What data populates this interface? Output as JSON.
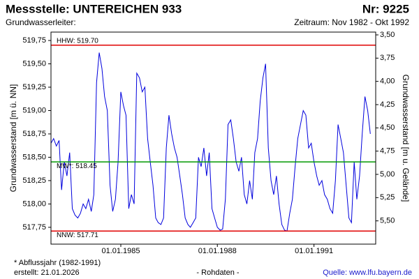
{
  "chart_data": {
    "type": "line",
    "title": "Messstelle: UNTEREICHEN 933",
    "number": "Nr: 9225",
    "subtitle": "Grundwasserleiter:",
    "period": "Zeitraum: Nov 1982 - Okt 1992",
    "ylabel": "Grundwasserstand [m ü. NN]",
    "y2label": "Grundwasserstand [m u. Gelände]",
    "footnote": "* Abflussjahr (1982-1991)",
    "created": "erstellt:  21.01.2026",
    "data_kind": "- Rohdaten -",
    "source": "Quelle: www.lfu.bayern.de",
    "color": "#0000dd",
    "xlim": [
      "1982-11-01",
      "1992-12-01"
    ],
    "xticks": [
      {
        "value": "1985-01-01",
        "label": "01.01.1985"
      },
      {
        "value": "1988-01-01",
        "label": "01.01.1988"
      },
      {
        "value": "1991-01-01",
        "label": "01.01.1991"
      }
    ],
    "ylim": [
      517.57,
      519.84
    ],
    "yticks": [
      {
        "value": 517.75,
        "label": "517,75"
      },
      {
        "value": 518.0,
        "label": "518,00"
      },
      {
        "value": 518.25,
        "label": "518,25"
      },
      {
        "value": 518.5,
        "label": "518,50"
      },
      {
        "value": 518.75,
        "label": "518,75"
      },
      {
        "value": 519.0,
        "label": "519,00"
      },
      {
        "value": 519.25,
        "label": "519,25"
      },
      {
        "value": 519.5,
        "label": "519,50"
      },
      {
        "value": 519.75,
        "label": "519,75"
      }
    ],
    "y2lim": [
      5.75,
      3.47
    ],
    "y2ticks": [
      {
        "value": 3.5,
        "label": "3,50"
      },
      {
        "value": 3.75,
        "label": "3,75"
      },
      {
        "value": 4.0,
        "label": "4,00"
      },
      {
        "value": 4.25,
        "label": "4,25"
      },
      {
        "value": 4.5,
        "label": "4,50"
      },
      {
        "value": 4.75,
        "label": "4,75"
      },
      {
        "value": 5.0,
        "label": "5,00"
      },
      {
        "value": 5.25,
        "label": "5,25"
      },
      {
        "value": 5.5,
        "label": "5,50"
      }
    ],
    "reference_lines": [
      {
        "label": "HHW: 519.70",
        "value": 519.7,
        "color": "#e00000"
      },
      {
        "label": "MW*: 518.45",
        "value": 518.45,
        "color": "#009900"
      },
      {
        "label": "NNW: 517.71",
        "value": 517.71,
        "color": "#e00000"
      }
    ],
    "x": [
      "1982-11-01",
      "1982-12-01",
      "1983-01-01",
      "1983-02-01",
      "1983-03-01",
      "1983-04-01",
      "1983-05-01",
      "1983-06-01",
      "1983-07-01",
      "1983-08-01",
      "1983-09-01",
      "1983-10-01",
      "1983-11-01",
      "1983-12-01",
      "1984-01-01",
      "1984-02-01",
      "1984-03-01",
      "1984-04-01",
      "1984-05-01",
      "1984-06-01",
      "1984-07-01",
      "1984-08-01",
      "1984-09-01",
      "1984-10-01",
      "1984-11-01",
      "1984-12-01",
      "1985-01-01",
      "1985-02-01",
      "1985-03-01",
      "1985-04-01",
      "1985-05-01",
      "1985-06-01",
      "1985-07-01",
      "1985-08-01",
      "1985-09-01",
      "1985-10-01",
      "1985-11-01",
      "1985-12-01",
      "1986-01-01",
      "1986-02-01",
      "1986-03-01",
      "1986-04-01",
      "1986-05-01",
      "1986-06-01",
      "1986-07-01",
      "1986-08-01",
      "1986-09-01",
      "1986-10-01",
      "1986-11-01",
      "1986-12-01",
      "1987-01-01",
      "1987-02-01",
      "1987-03-01",
      "1987-04-01",
      "1987-05-01",
      "1987-06-01",
      "1987-07-01",
      "1987-08-01",
      "1987-09-01",
      "1987-10-01",
      "1987-11-01",
      "1987-12-01",
      "1988-01-01",
      "1988-02-01",
      "1988-03-01",
      "1988-04-01",
      "1988-05-01",
      "1988-06-01",
      "1988-07-01",
      "1988-08-01",
      "1988-09-01",
      "1988-10-01",
      "1988-11-01",
      "1988-12-01",
      "1989-01-01",
      "1989-02-01",
      "1989-03-01",
      "1989-04-01",
      "1989-05-01",
      "1989-06-01",
      "1989-07-01",
      "1989-08-01",
      "1989-09-01",
      "1989-10-01",
      "1989-11-01",
      "1989-12-01",
      "1990-01-01",
      "1990-02-01",
      "1990-03-01",
      "1990-04-01",
      "1990-05-01",
      "1990-06-01",
      "1990-07-01",
      "1990-08-01",
      "1990-09-01",
      "1990-10-01",
      "1990-11-01",
      "1990-12-01",
      "1991-01-01",
      "1991-02-01",
      "1991-03-01",
      "1991-04-01",
      "1991-05-01",
      "1991-06-01",
      "1991-07-01",
      "1991-08-01",
      "1991-09-01",
      "1991-10-01",
      "1991-11-01",
      "1991-12-01",
      "1992-01-01",
      "1992-02-01",
      "1992-03-01",
      "1992-04-01",
      "1992-05-01",
      "1992-06-01",
      "1992-07-01",
      "1992-08-01",
      "1992-09-01",
      "1992-10-01"
    ],
    "values": [
      518.65,
      518.7,
      518.62,
      518.68,
      518.15,
      518.45,
      518.3,
      518.55,
      517.95,
      517.88,
      517.85,
      517.9,
      518.0,
      517.95,
      518.05,
      517.92,
      518.1,
      519.3,
      519.62,
      519.45,
      519.15,
      519.0,
      518.2,
      517.92,
      518.05,
      518.45,
      519.2,
      519.05,
      518.95,
      517.95,
      518.1,
      518.0,
      519.4,
      519.35,
      519.2,
      519.25,
      518.7,
      518.45,
      518.2,
      517.85,
      517.8,
      517.78,
      517.85,
      518.6,
      518.95,
      518.75,
      518.6,
      518.5,
      518.3,
      518.1,
      517.85,
      517.78,
      517.75,
      517.8,
      517.85,
      518.5,
      518.4,
      518.6,
      518.3,
      518.55,
      517.95,
      517.85,
      517.75,
      517.72,
      517.73,
      518.05,
      518.85,
      518.9,
      518.7,
      518.45,
      518.35,
      518.5,
      518.1,
      518.0,
      518.25,
      518.05,
      518.55,
      518.7,
      519.1,
      519.35,
      519.5,
      518.6,
      518.25,
      518.1,
      518.3,
      518.0,
      517.78,
      517.72,
      517.71,
      517.9,
      518.05,
      518.4,
      518.7,
      518.85,
      519.0,
      518.95,
      518.6,
      518.65,
      518.45,
      518.3,
      518.2,
      518.25,
      518.1,
      518.05,
      517.95,
      517.9,
      518.25,
      518.85,
      518.7,
      518.55,
      518.2,
      517.85,
      517.8,
      518.45,
      518.05,
      518.3,
      518.75,
      519.15,
      519.0,
      518.75
    ]
  }
}
